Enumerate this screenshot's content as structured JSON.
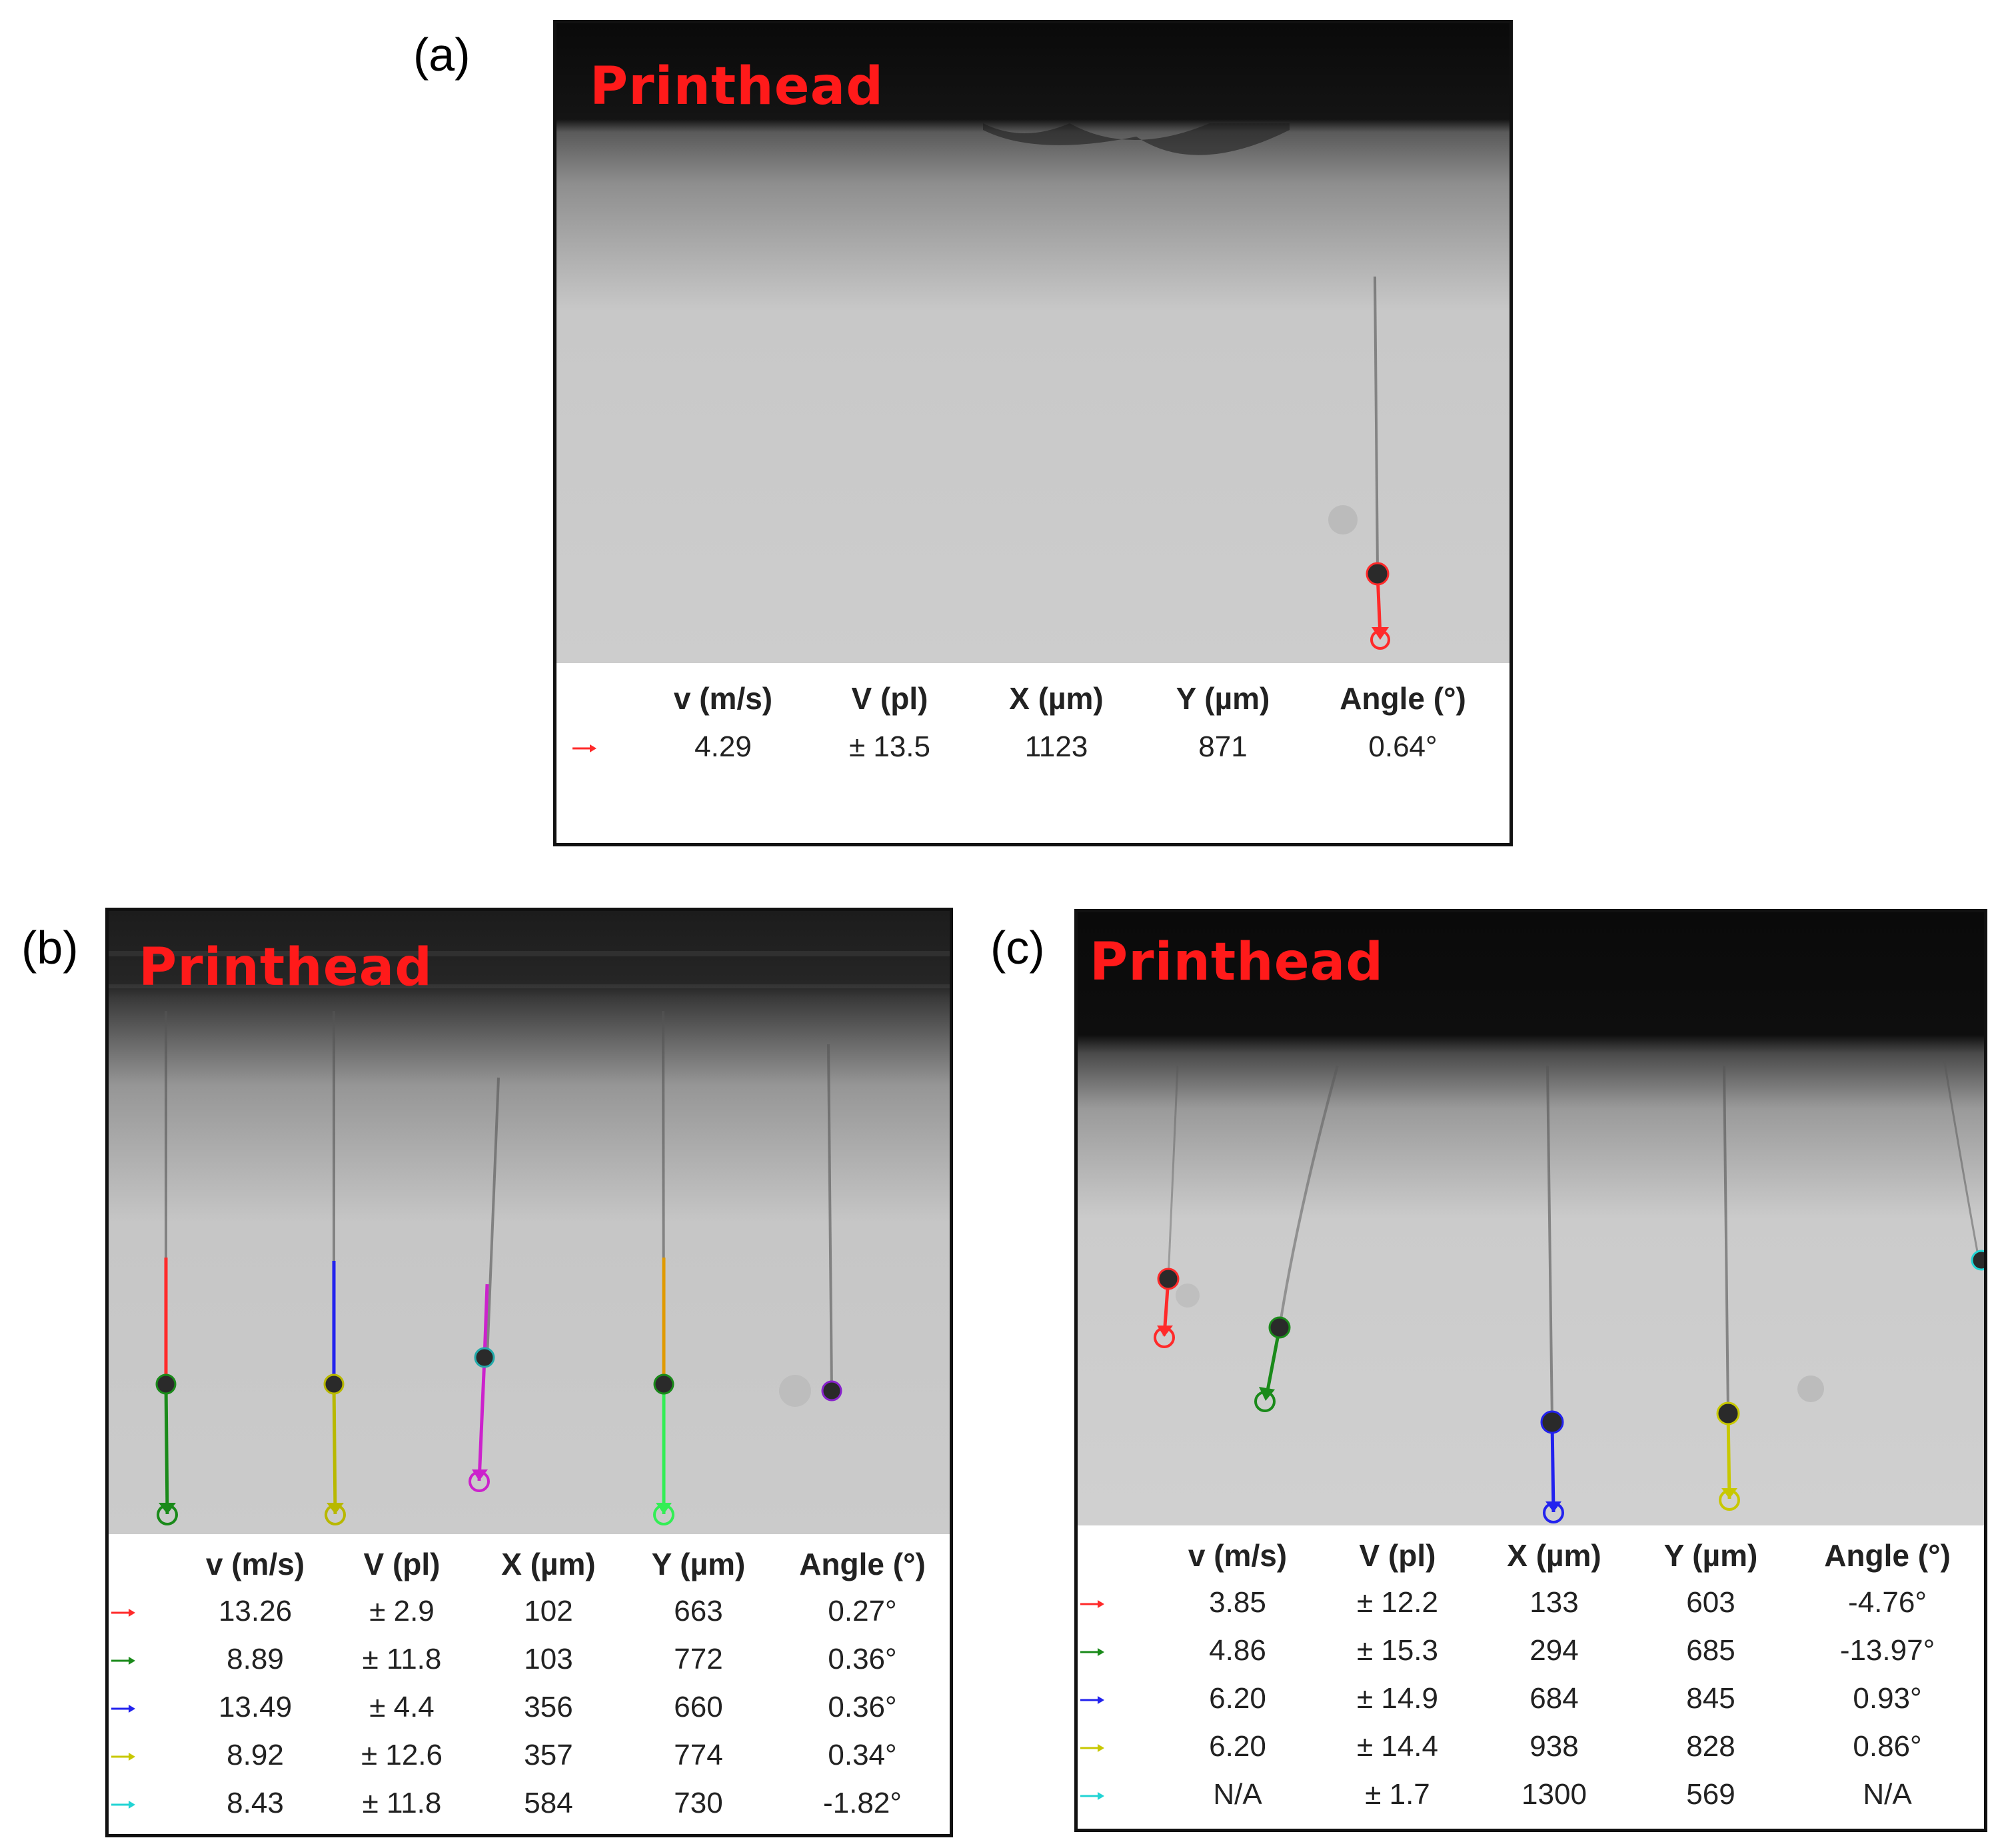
{
  "panels": [
    {
      "label": "(a)",
      "printhead_label": "Printhead",
      "headers": [
        "v (m/s)",
        "V (pl)",
        "X (µm)",
        "Y (µm)",
        "Angle (°)"
      ],
      "rows": [
        {
          "color": "#ff2a2a",
          "v": "4.29",
          "V": "± 13.5",
          "X": "1123",
          "Y": "871",
          "angle": "0.64°"
        }
      ]
    },
    {
      "label": "(b)",
      "printhead_label": "Printhead",
      "headers": [
        "v (m/s)",
        "V (pl)",
        "X (µm)",
        "Y (µm)",
        "Angle (°)"
      ],
      "rows": [
        {
          "color": "#ff2a2a",
          "v": "13.26",
          "V": "± 2.9",
          "X": "102",
          "Y": "663",
          "angle": "0.27°"
        },
        {
          "color": "#1a8a1a",
          "v": "8.89",
          "V": "± 11.8",
          "X": "103",
          "Y": "772",
          "angle": "0.36°"
        },
        {
          "color": "#2222ee",
          "v": "13.49",
          "V": "± 4.4",
          "X": "356",
          "Y": "660",
          "angle": "0.36°"
        },
        {
          "color": "#c8c800",
          "v": "8.92",
          "V": "± 12.6",
          "X": "357",
          "Y": "774",
          "angle": "0.34°"
        },
        {
          "color": "#22d4d4",
          "v": "8.43",
          "V": "± 11.8",
          "X": "584",
          "Y": "730",
          "angle": "-1.82°"
        }
      ]
    },
    {
      "label": "(c)",
      "printhead_label": "Printhead",
      "headers": [
        "v (m/s)",
        "V (pl)",
        "X (µm)",
        "Y (µm)",
        "Angle (°)"
      ],
      "rows": [
        {
          "color": "#ff2a2a",
          "v": "3.85",
          "V": "± 12.2",
          "X": "133",
          "Y": "603",
          "angle": "-4.76°"
        },
        {
          "color": "#1a8a1a",
          "v": "4.86",
          "V": "± 15.3",
          "X": "294",
          "Y": "685",
          "angle": "-13.97°"
        },
        {
          "color": "#2222ee",
          "v": "6.20",
          "V": "± 14.9",
          "X": "684",
          "Y": "845",
          "angle": "0.93°"
        },
        {
          "color": "#c8c800",
          "v": "6.20",
          "V": "± 14.4",
          "X": "938",
          "Y": "828",
          "angle": "0.86°"
        },
        {
          "color": "#22d4d4",
          "v": "N/A",
          "V": "± 1.7",
          "X": "1300",
          "Y": "569",
          "angle": "N/A"
        }
      ]
    }
  ]
}
